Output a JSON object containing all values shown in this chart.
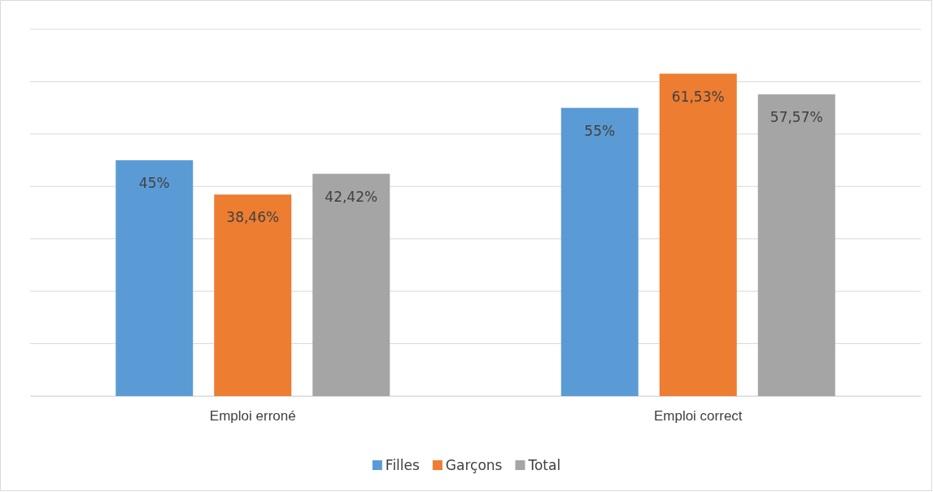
{
  "chart_data": {
    "type": "bar",
    "categories": [
      "Emploi erroné",
      "Emploi correct"
    ],
    "series": [
      {
        "name": "Filles",
        "color": "#5b9bd5",
        "values": [
          45,
          55
        ],
        "value_labels": [
          "45%",
          "55%"
        ]
      },
      {
        "name": "Garçons",
        "color": "#ed7d31",
        "values": [
          38.46,
          61.53
        ],
        "value_labels": [
          "38,46%",
          "61,53%"
        ]
      },
      {
        "name": "Total",
        "color": "#a5a5a5",
        "values": [
          42.42,
          57.57
        ],
        "value_labels": [
          "42,42%",
          "57,57%"
        ]
      }
    ],
    "ylim": [
      0,
      70
    ],
    "yticks": [
      {
        "value": 0,
        "label": null
      },
      {
        "value": 10,
        "label": null
      },
      {
        "value": 20,
        "label": null
      },
      {
        "value": 30,
        "label": null
      },
      {
        "value": 40,
        "label": null
      },
      {
        "value": 50,
        "label": null
      },
      {
        "value": 60,
        "label": null
      },
      {
        "value": 70,
        "label": null
      }
    ],
    "grid": "y",
    "tick_labels": "x",
    "legend": "bottom"
  }
}
